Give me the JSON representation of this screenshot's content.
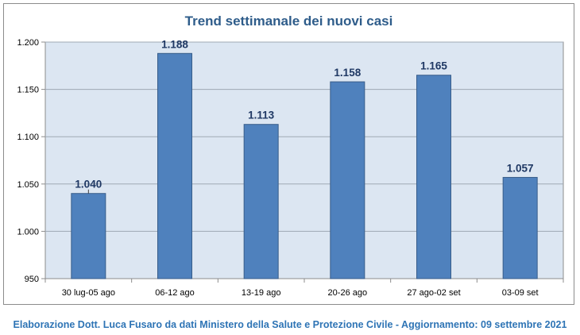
{
  "chart_data": {
    "type": "bar",
    "title": "Trend settimanale dei nuovi casi",
    "categories": [
      "30 lug-05 ago",
      "06-12 ago",
      "13-19 ago",
      "20-26 ago",
      "27 ago-02 set",
      "03-09 set"
    ],
    "values": [
      1040,
      1188,
      1113,
      1158,
      1165,
      1057
    ],
    "value_labels": [
      "1.040",
      "1.188",
      "1.113",
      "1.158",
      "1.165",
      "1.057"
    ],
    "y_ticks": [
      950,
      1000,
      1050,
      1100,
      1150,
      1200
    ],
    "y_tick_labels": [
      "950",
      "1.000",
      "1.050",
      "1.100",
      "1.150",
      "1.200"
    ],
    "ylim": [
      950,
      1200
    ],
    "xlabel": "",
    "ylabel": "",
    "grid": true,
    "legend": "none",
    "colors": {
      "bar": "#4f81bd",
      "bar_border": "#385d8a",
      "plot_bg": "#dce6f2",
      "gridline": "#9fa9b4",
      "title": "#2e5c8a",
      "value_label": "#1f3864"
    }
  },
  "footer": {
    "credit": "Elaborazione Dott. Luca Fusaro da dati Ministero della Salute e Protezione Civile - Aggiornamento: 09 settembre 2021"
  }
}
